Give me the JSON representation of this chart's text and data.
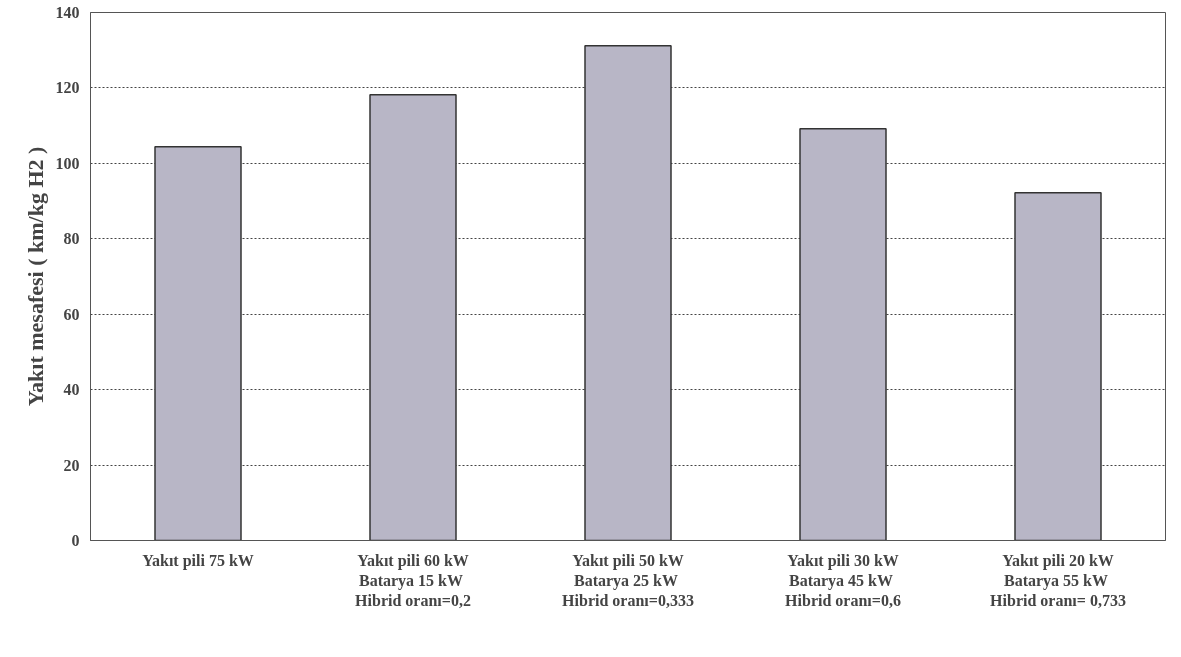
{
  "chart_data": {
    "type": "bar",
    "ylabel": "Yakıt mesafesi ( km/kg H2 )",
    "categories": [
      "Yakıt pili 75 kW",
      "Yakıt pili 60 kW\nBatarya  15 kW\nHibrid oranı=0,2",
      "Yakıt pili 50 kW\nBatarya  25 kW\nHibrid oranı=0,333",
      "Yakıt pili 30 kW\nBatarya  45 kW\nHibrid oranı=0,6",
      "Yakıt pili 20 kW\nBatarya  55 kW\nHibrid oranı= 0,733"
    ],
    "values": [
      104.4,
      118.2,
      131.2,
      109.2,
      92.2
    ],
    "color": "#b8b6c6",
    "ylim": [
      0,
      140
    ],
    "yticks": [
      0,
      20,
      40,
      60,
      80,
      100,
      120,
      140
    ],
    "grid": "y"
  }
}
